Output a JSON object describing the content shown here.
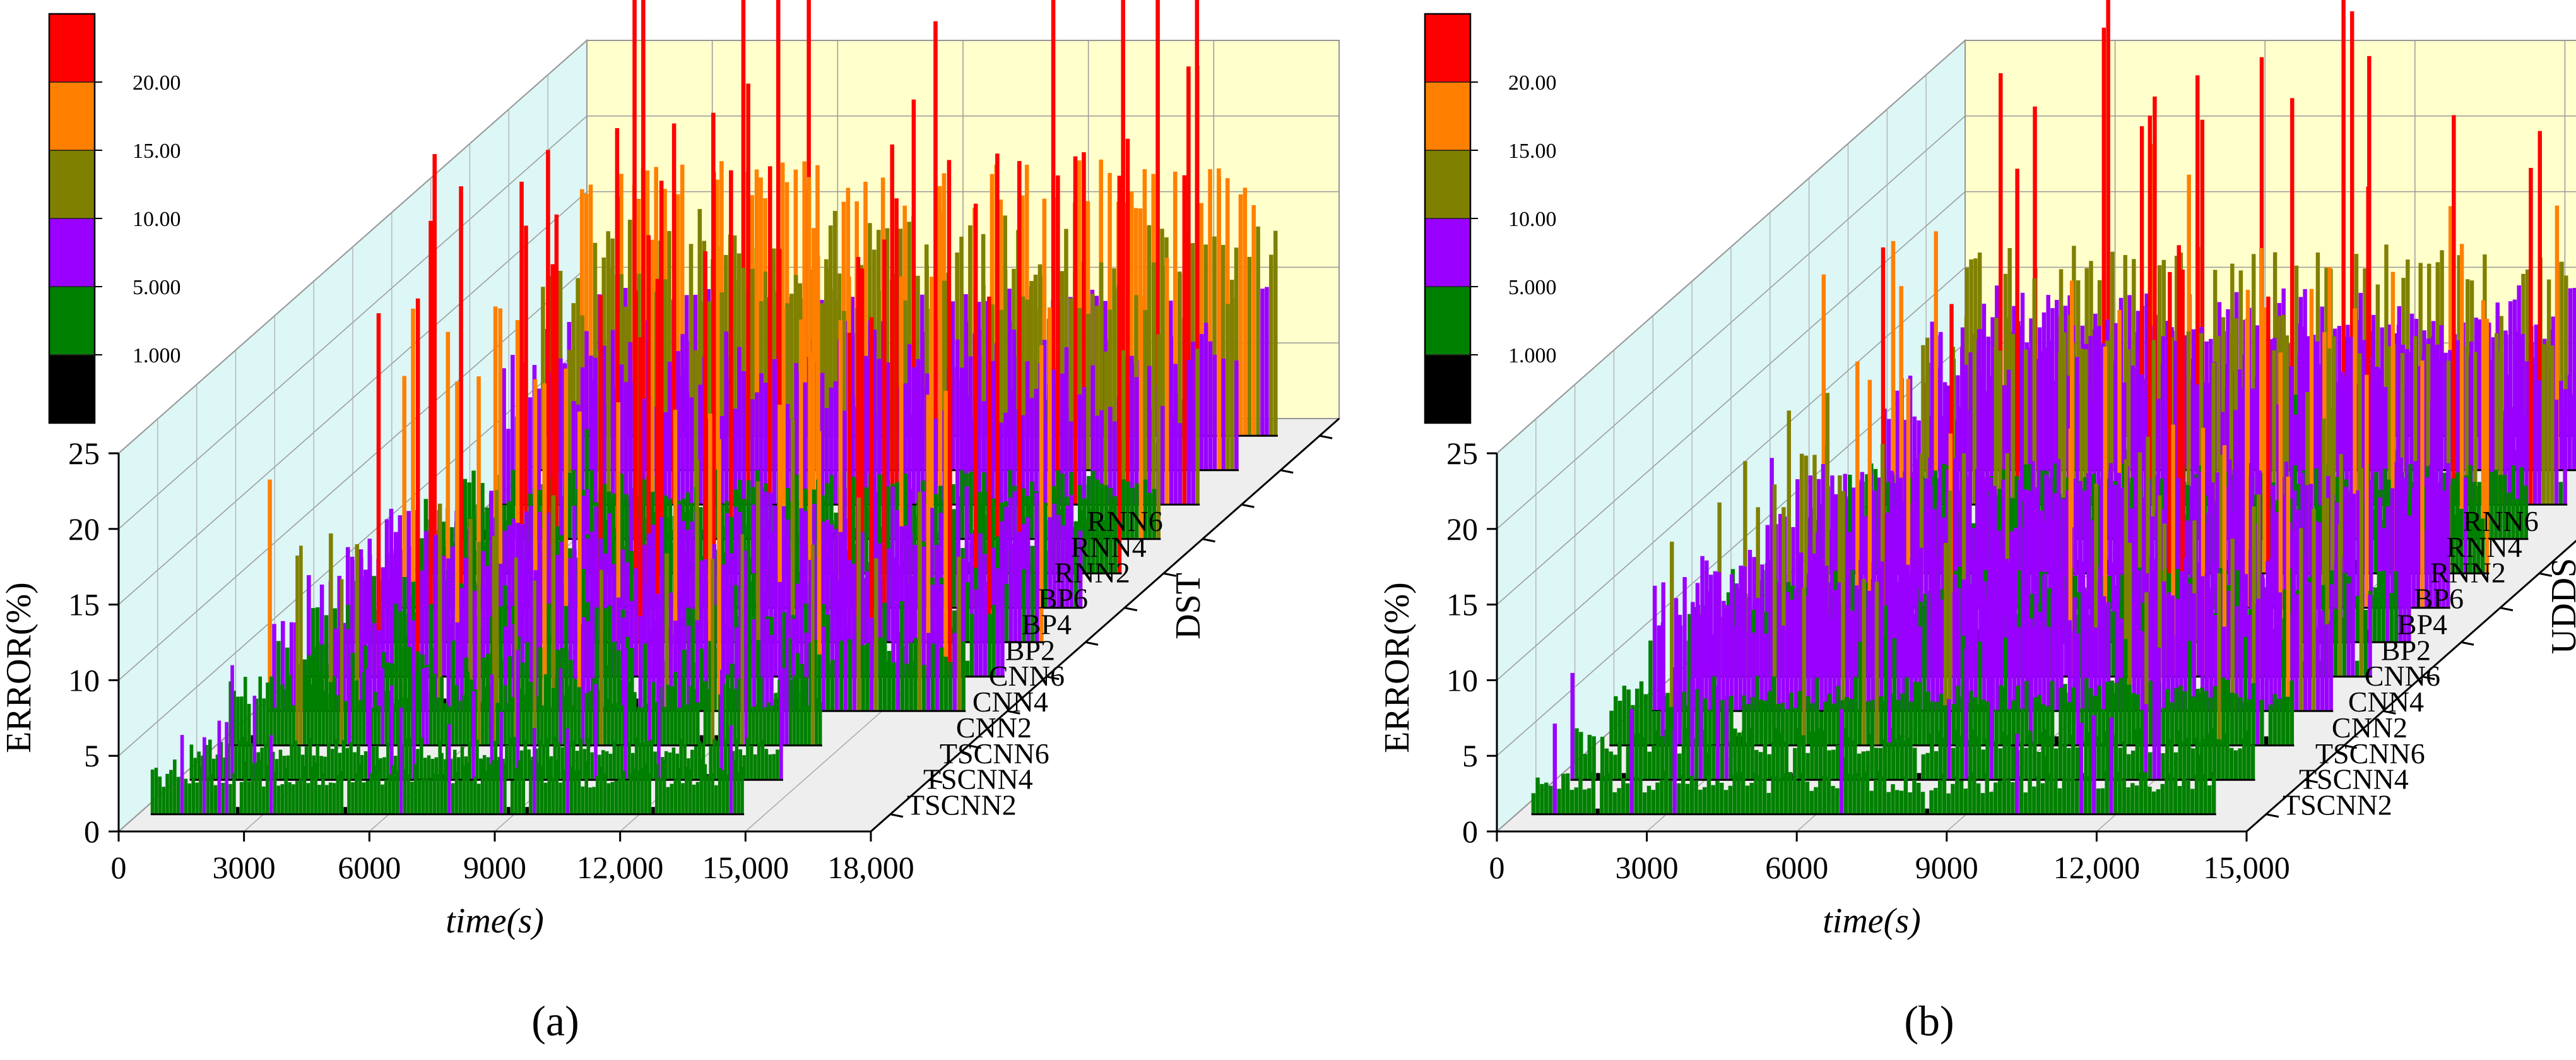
{
  "chart_data": [
    {
      "type": "3d-waterfall-area",
      "panel_label": "(a)",
      "panel_letter": "a",
      "dataset": "DST",
      "xlabel": "time(s)",
      "ylabel": "ERROR(%)",
      "x_ticks": [
        "0",
        "3000",
        "6000",
        "9000",
        "12,000",
        "15,000",
        "18,000"
      ],
      "y_ticks": [
        "0",
        "5",
        "10",
        "15",
        "20",
        "25"
      ],
      "xlim": [
        0,
        18000
      ],
      "ylim": [
        0,
        25
      ],
      "colorbar": {
        "labels": [
          "1.000",
          "5.000",
          "10.00",
          "15.00",
          "20.00"
        ],
        "colors": [
          "#000000",
          "#008000",
          "#9900ff",
          "#808000",
          "#ff8000",
          "#ff0000"
        ]
      },
      "series": [
        {
          "name": "TSCNN2",
          "x_end": 14500,
          "level": 3.2,
          "peak": 8
        },
        {
          "name": "TSCNN4",
          "x_end": 14500,
          "level": 2.5,
          "peak": 10
        },
        {
          "name": "TSCNN6",
          "x_end": 14500,
          "level": 4.5,
          "peak": 14
        },
        {
          "name": "CNN2",
          "x_end": 17000,
          "level": 5.5,
          "peak": 20
        },
        {
          "name": "CNN4",
          "x_end": 17000,
          "level": 7.0,
          "peak": 25
        },
        {
          "name": "CNN6",
          "x_end": 17000,
          "level": 6.5,
          "peak": 28
        },
        {
          "name": "BP2",
          "x_end": 17000,
          "level": 6.0,
          "peak": 30
        },
        {
          "name": "BP4",
          "x_end": 17000,
          "level": 5.0,
          "peak": 28
        },
        {
          "name": "BP6",
          "x_end": 17000,
          "level": 4.0,
          "peak": 26
        },
        {
          "name": "RNN2",
          "x_end": 17000,
          "level": 9.0,
          "peak": 30
        },
        {
          "name": "RNN4",
          "x_end": 17000,
          "level": 12.0,
          "peak": 35
        },
        {
          "name": "RNN6",
          "x_end": 17000,
          "level": 16.0,
          "peak": 40
        }
      ]
    },
    {
      "type": "3d-waterfall-area",
      "panel_label": "(b)",
      "panel_letter": "b",
      "dataset": "UDDS",
      "xlabel": "time(s)",
      "ylabel": "ERROR(%)",
      "x_ticks": [
        "0",
        "3000",
        "6000",
        "9000",
        "12,000",
        "15,000"
      ],
      "y_ticks": [
        "0",
        "5",
        "10",
        "15",
        "20",
        "25"
      ],
      "xlim": [
        0,
        15000
      ],
      "ylim": [
        0,
        25
      ],
      "colorbar": {
        "labels": [
          "1.000",
          "5.000",
          "10.00",
          "15.00",
          "20.00"
        ],
        "colors": [
          "#000000",
          "#008000",
          "#9900ff",
          "#808000",
          "#ff8000",
          "#ff0000"
        ]
      },
      "series": [
        {
          "name": "TSCNN2",
          "x_end": 14000,
          "level": 2.5,
          "peak": 7
        },
        {
          "name": "TSCNN4",
          "x_end": 14000,
          "level": 3.0,
          "peak": 9
        },
        {
          "name": "TSCNN6",
          "x_end": 14000,
          "level": 4.0,
          "peak": 12
        },
        {
          "name": "CNN2",
          "x_end": 14000,
          "level": 8.0,
          "peak": 16
        },
        {
          "name": "CNN4",
          "x_end": 14000,
          "level": 7.0,
          "peak": 18
        },
        {
          "name": "CNN6",
          "x_end": 14000,
          "level": 5.5,
          "peak": 20
        },
        {
          "name": "BP2",
          "x_end": 14000,
          "level": 9.0,
          "peak": 24
        },
        {
          "name": "BP4",
          "x_end": 14000,
          "level": 6.0,
          "peak": 22
        },
        {
          "name": "BP6",
          "x_end": 14000,
          "level": 4.5,
          "peak": 20
        },
        {
          "name": "RNN2",
          "x_end": 14000,
          "level": 10.0,
          "peak": 26
        },
        {
          "name": "RNN4",
          "x_end": 14000,
          "level": 9.0,
          "peak": 28
        },
        {
          "name": "RNN6",
          "x_end": 14000,
          "level": 11.0,
          "peak": 30
        }
      ]
    }
  ]
}
